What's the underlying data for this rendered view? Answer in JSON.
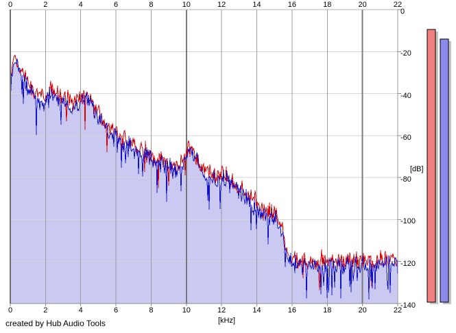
{
  "window": {
    "credit": "created by Hub Audio Tools"
  },
  "colors": {
    "background": "#ffffff",
    "plot_background": "#ffffff",
    "grid_horizontal": "#d6d6d6",
    "grid_vertical_minor": "#9c9c9c",
    "grid_vertical_major": "#787878",
    "border_left": "#6e6e6e",
    "border_top": "#b4b4b4",
    "border_right": "#9a9a9a",
    "border_bottom": "#8c8c8c",
    "tick_stub": "#8c8c8c",
    "trace_red": "#d80000",
    "trace_blue": "#1212c8",
    "area_fill": "#c9c9f1",
    "meter_red": "#f08080",
    "meter_blue": "#8a8ae8",
    "meter_border": "#000000",
    "meter_shadow": "#c4c4c4",
    "text": "#000000"
  },
  "chart_data": {
    "type": "line",
    "title": "",
    "xlabel": "[kHz]",
    "ylabel": "[dB]",
    "x_unit": "kHz",
    "y_unit": "dB",
    "xlim": [
      0,
      22
    ],
    "ylim": [
      -140,
      0
    ],
    "x_ticks": [
      0,
      2,
      4,
      6,
      8,
      10,
      12,
      14,
      16,
      18,
      20,
      22
    ],
    "y_ticks": [
      0,
      -20,
      -40,
      -60,
      -80,
      -100,
      -120,
      -140
    ],
    "grid": true,
    "legend": "none",
    "description": "Audio frequency spectrum, two overlaid noisy traces (red and blue channels); blue trace area-filled to bottom; spectrum falls from about -24 dB near 0.3 kHz to a flat noise floor near -120 dB above 15.5 kHz (sharp lowpass cutoff at about 15.5 kHz); local bumps near 2.3, 4.3, 10.1 and 12.2 kHz.",
    "series": [
      {
        "name": "spectrum-red",
        "color": "#d80000",
        "ripple_db": 5.5,
        "seed": 9,
        "envelope_db": [
          [
            0,
            -36
          ],
          [
            0.15,
            -26
          ],
          [
            0.3,
            -23
          ],
          [
            0.5,
            -28
          ],
          [
            0.8,
            -32
          ],
          [
            1.1,
            -36
          ],
          [
            1.5,
            -40
          ],
          [
            2.0,
            -43
          ],
          [
            2.3,
            -36
          ],
          [
            2.6,
            -40
          ],
          [
            3.0,
            -42
          ],
          [
            3.5,
            -44
          ],
          [
            4.0,
            -42
          ],
          [
            4.3,
            -40
          ],
          [
            4.7,
            -44
          ],
          [
            5.0,
            -50
          ],
          [
            5.4,
            -55
          ],
          [
            6.0,
            -59
          ],
          [
            6.5,
            -62
          ],
          [
            7.0,
            -65
          ],
          [
            7.5,
            -67
          ],
          [
            8.0,
            -69
          ],
          [
            8.5,
            -71
          ],
          [
            9.0,
            -73
          ],
          [
            9.5,
            -75
          ],
          [
            9.8,
            -71
          ],
          [
            10.1,
            -65
          ],
          [
            10.4,
            -67
          ],
          [
            10.8,
            -74
          ],
          [
            11.2,
            -77
          ],
          [
            11.7,
            -80
          ],
          [
            12.1,
            -78
          ],
          [
            12.4,
            -80
          ],
          [
            13.0,
            -85
          ],
          [
            13.5,
            -88
          ],
          [
            14.0,
            -92
          ],
          [
            14.6,
            -96
          ],
          [
            15.1,
            -99
          ],
          [
            15.4,
            -102
          ],
          [
            15.6,
            -112
          ],
          [
            15.8,
            -117
          ],
          [
            16.2,
            -119
          ],
          [
            17.0,
            -120
          ],
          [
            18.0,
            -119
          ],
          [
            19.0,
            -120
          ],
          [
            20.0,
            -119
          ],
          [
            21.0,
            -119
          ],
          [
            22.0,
            -118
          ]
        ]
      },
      {
        "name": "spectrum-blue",
        "color": "#1212c8",
        "fill": "#c9c9f1",
        "ripple_db": 5.5,
        "seed": 23,
        "envelope_db": [
          [
            0,
            -38
          ],
          [
            0.15,
            -28
          ],
          [
            0.3,
            -25
          ],
          [
            0.5,
            -30
          ],
          [
            0.8,
            -34
          ],
          [
            1.1,
            -38
          ],
          [
            1.5,
            -42
          ],
          [
            2.0,
            -45
          ],
          [
            2.3,
            -38
          ],
          [
            2.6,
            -42
          ],
          [
            3.0,
            -44
          ],
          [
            3.5,
            -46
          ],
          [
            4.0,
            -44
          ],
          [
            4.3,
            -42
          ],
          [
            4.7,
            -46
          ],
          [
            5.0,
            -52
          ],
          [
            5.4,
            -57
          ],
          [
            6.0,
            -61
          ],
          [
            6.5,
            -64
          ],
          [
            7.0,
            -67
          ],
          [
            7.5,
            -69
          ],
          [
            8.0,
            -71
          ],
          [
            8.5,
            -73
          ],
          [
            9.0,
            -75
          ],
          [
            9.5,
            -77
          ],
          [
            9.8,
            -73
          ],
          [
            10.1,
            -67
          ],
          [
            10.4,
            -69
          ],
          [
            10.8,
            -76
          ],
          [
            11.2,
            -79
          ],
          [
            11.7,
            -82
          ],
          [
            12.1,
            -80
          ],
          [
            12.4,
            -82
          ],
          [
            13.0,
            -87
          ],
          [
            13.5,
            -91
          ],
          [
            14.0,
            -95
          ],
          [
            14.6,
            -99
          ],
          [
            15.1,
            -101
          ],
          [
            15.4,
            -104
          ],
          [
            15.6,
            -114
          ],
          [
            15.8,
            -119
          ],
          [
            16.2,
            -121
          ],
          [
            17.0,
            -122
          ],
          [
            18.0,
            -121
          ],
          [
            19.0,
            -122
          ],
          [
            20.0,
            -121
          ],
          [
            21.0,
            -121
          ],
          [
            22.0,
            -120
          ]
        ]
      }
    ],
    "level_meters": {
      "range_db": [
        0,
        -140
      ],
      "bars": [
        {
          "name": "level-meter-red",
          "color": "#f08080",
          "value_db": -9.5
        },
        {
          "name": "level-meter-blue",
          "color": "#8a8ae8",
          "value_db": -14
        }
      ]
    }
  }
}
